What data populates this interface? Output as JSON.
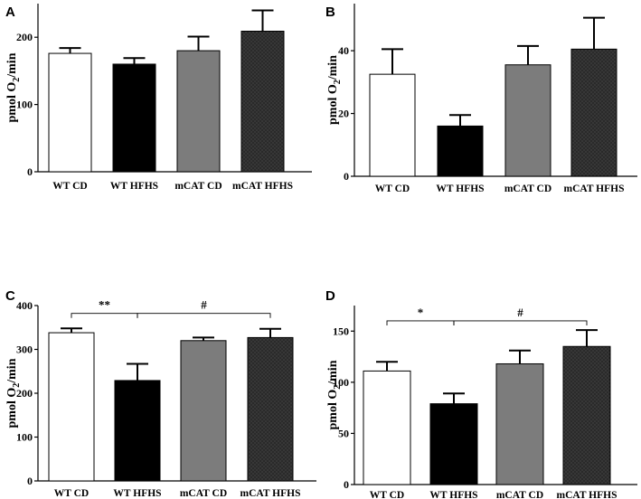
{
  "chart_data": [
    {
      "panel": "A",
      "type": "bar",
      "categories": [
        "WT CD",
        "WT HFHS",
        "mCAT CD",
        "mCAT HFHS"
      ],
      "values": [
        176,
        160,
        180,
        209
      ],
      "errors": [
        8,
        9,
        21,
        31
      ],
      "ylabel_base": "pmol O",
      "ylabel_sub": "2",
      "ylabel_tail": "/min",
      "ylim": [
        0,
        250
      ],
      "yticks": [
        0,
        100,
        200
      ],
      "significance": []
    },
    {
      "panel": "B",
      "type": "bar",
      "categories": [
        "WT CD",
        "WT HFHS",
        "mCAT CD",
        "mCAT HFHS"
      ],
      "values": [
        32.5,
        16,
        35.5,
        40.5
      ],
      "errors": [
        8,
        3.5,
        6,
        10
      ],
      "ylabel_base": "pmol O",
      "ylabel_sub": "2",
      "ylabel_tail": "/min",
      "ylim": [
        0,
        55
      ],
      "yticks": [
        0,
        20,
        40
      ],
      "significance": []
    },
    {
      "panel": "C",
      "type": "bar",
      "categories": [
        "WT CD",
        "WT HFHS",
        "mCAT CD",
        "mCAT HFHS"
      ],
      "values": [
        338,
        229,
        320,
        327
      ],
      "errors": [
        10,
        38,
        7,
        20
      ],
      "ylabel_base": "pmol O",
      "ylabel_sub": "2",
      "ylabel_tail": "/min",
      "ylim": [
        0,
        400
      ],
      "yticks": [
        0,
        100,
        200,
        300,
        400
      ],
      "significance": [
        {
          "from": 0,
          "to": 1,
          "label": "**",
          "y": 382
        },
        {
          "from": 1,
          "to": 3,
          "label": "#",
          "y": 382
        }
      ]
    },
    {
      "panel": "D",
      "type": "bar",
      "categories": [
        "WT CD",
        "WT HFHS",
        "mCAT CD",
        "mCAT HFHS"
      ],
      "values": [
        111,
        79,
        118,
        135
      ],
      "errors": [
        9,
        10,
        13,
        16
      ],
      "ylabel_base": "pmol O",
      "ylabel_sub": "2",
      "ylabel_tail": "/min",
      "ylim": [
        0,
        175
      ],
      "yticks": [
        0,
        50,
        100,
        150
      ],
      "significance": [
        {
          "from": 0,
          "to": 1,
          "label": "*",
          "y": 160
        },
        {
          "from": 1,
          "to": 3,
          "label": "#",
          "y": 160
        }
      ]
    }
  ],
  "colors": {
    "bar_fills": [
      "#ffffff",
      "#000000",
      "#7c7c7c",
      "#262626"
    ],
    "stroke": "#000000"
  }
}
